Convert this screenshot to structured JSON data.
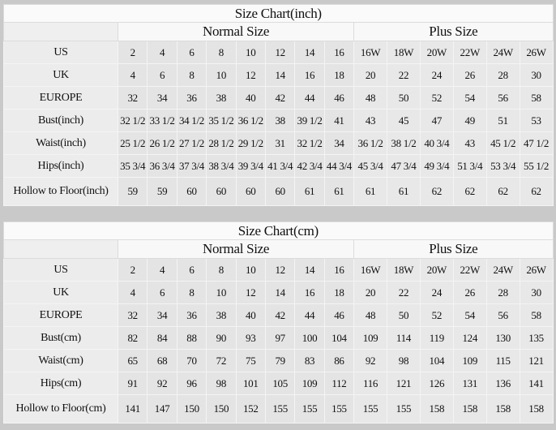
{
  "tables": [
    {
      "title": "Size Chart(inch)",
      "normal_label": "Normal Size",
      "plus_label": "Plus Size",
      "rows": [
        {
          "label": "US",
          "values": [
            "2",
            "4",
            "6",
            "8",
            "10",
            "12",
            "14",
            "16",
            "16W",
            "18W",
            "20W",
            "22W",
            "24W",
            "26W"
          ]
        },
        {
          "label": "UK",
          "values": [
            "4",
            "6",
            "8",
            "10",
            "12",
            "14",
            "16",
            "18",
            "20",
            "22",
            "24",
            "26",
            "28",
            "30"
          ]
        },
        {
          "label": "EUROPE",
          "values": [
            "32",
            "34",
            "36",
            "38",
            "40",
            "42",
            "44",
            "46",
            "48",
            "50",
            "52",
            "54",
            "56",
            "58"
          ]
        },
        {
          "label": "Bust(inch)",
          "values": [
            "32 1/2",
            "33 1/2",
            "34 1/2",
            "35 1/2",
            "36 1/2",
            "38",
            "39 1/2",
            "41",
            "43",
            "45",
            "47",
            "49",
            "51",
            "53"
          ]
        },
        {
          "label": "Waist(inch)",
          "values": [
            "25 1/2",
            "26 1/2",
            "27 1/2",
            "28 1/2",
            "29 1/2",
            "31",
            "32 1/2",
            "34",
            "36 1/2",
            "38 1/2",
            "40 3/4",
            "43",
            "45 1/2",
            "47 1/2"
          ]
        },
        {
          "label": "Hips(inch)",
          "values": [
            "35 3/4",
            "36 3/4",
            "37 3/4",
            "38 3/4",
            "39 3/4",
            "41 3/4",
            "42 3/4",
            "44 3/4",
            "45 3/4",
            "47 3/4",
            "49 3/4",
            "51 3/4",
            "53 3/4",
            "55 1/2"
          ]
        },
        {
          "label": "Hollow to Floor(inch)",
          "values": [
            "59",
            "59",
            "60",
            "60",
            "60",
            "60",
            "61",
            "61",
            "61",
            "61",
            "62",
            "62",
            "62",
            "62"
          ]
        }
      ]
    },
    {
      "title": "Size Chart(cm)",
      "normal_label": "Normal Size",
      "plus_label": "Plus Size",
      "rows": [
        {
          "label": "US",
          "values": [
            "2",
            "4",
            "6",
            "8",
            "10",
            "12",
            "14",
            "16",
            "16W",
            "18W",
            "20W",
            "22W",
            "24W",
            "26W"
          ]
        },
        {
          "label": "UK",
          "values": [
            "4",
            "6",
            "8",
            "10",
            "12",
            "14",
            "16",
            "18",
            "20",
            "22",
            "24",
            "26",
            "28",
            "30"
          ]
        },
        {
          "label": "EUROPE",
          "values": [
            "32",
            "34",
            "36",
            "38",
            "40",
            "42",
            "44",
            "46",
            "48",
            "50",
            "52",
            "54",
            "56",
            "58"
          ]
        },
        {
          "label": "Bust(cm)",
          "values": [
            "82",
            "84",
            "88",
            "90",
            "93",
            "97",
            "100",
            "104",
            "109",
            "114",
            "119",
            "124",
            "130",
            "135"
          ]
        },
        {
          "label": "Waist(cm)",
          "values": [
            "65",
            "68",
            "70",
            "72",
            "75",
            "79",
            "83",
            "86",
            "92",
            "98",
            "104",
            "109",
            "115",
            "121"
          ]
        },
        {
          "label": "Hips(cm)",
          "values": [
            "91",
            "92",
            "96",
            "98",
            "101",
            "105",
            "109",
            "112",
            "116",
            "121",
            "126",
            "131",
            "136",
            "141"
          ]
        },
        {
          "label": "Hollow to Floor(cm)",
          "values": [
            "141",
            "147",
            "150",
            "150",
            "152",
            "155",
            "155",
            "155",
            "155",
            "155",
            "158",
            "158",
            "158",
            "158"
          ]
        }
      ]
    }
  ]
}
